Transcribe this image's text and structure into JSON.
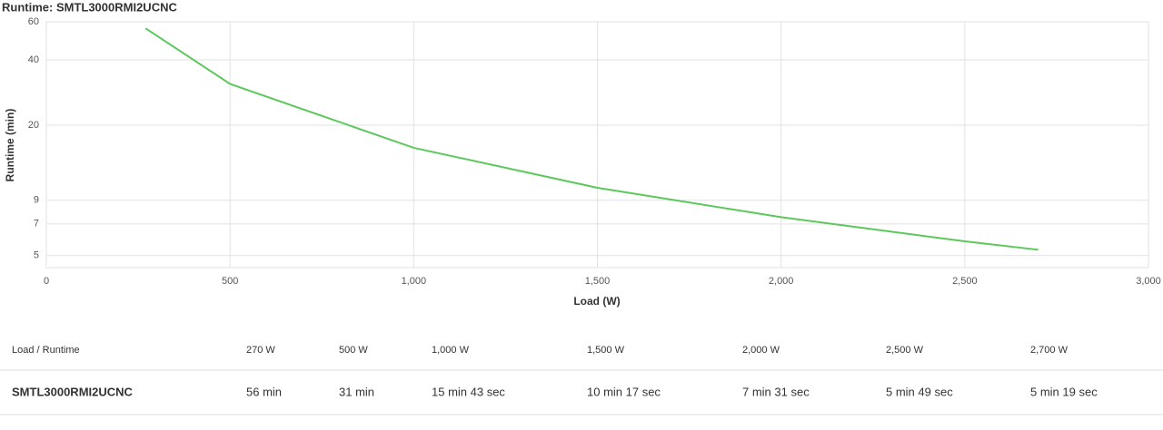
{
  "chart_data": {
    "type": "line",
    "title": "Runtime: SMTL3000RMI2UCNC",
    "x_label": "Load (W)",
    "y_label": "Runtime (min)",
    "x": [
      270,
      500,
      1000,
      1500,
      2000,
      2500,
      2700
    ],
    "series": [
      {
        "name": "SMTL3000RMI2UCNC",
        "color": "#5cc85c",
        "values": [
          56,
          31,
          15.72,
          10.28,
          7.52,
          5.82,
          5.32
        ]
      }
    ],
    "xlim": [
      0,
      3000
    ],
    "xticks": [
      0,
      500,
      {
        "value": 1000,
        "label": "1,000"
      },
      {
        "value": 1500,
        "label": "1,500"
      },
      {
        "value": 2000,
        "label": "2,000"
      },
      {
        "value": 2500,
        "label": "2,500"
      },
      {
        "value": 3000,
        "label": "3,000"
      }
    ],
    "ylim": [
      4.4,
      60
    ],
    "yticks": [
      5,
      7,
      9,
      20,
      40,
      60
    ],
    "ylog": true,
    "grid": true
  },
  "table": {
    "header": [
      "Load / Runtime",
      "270 W",
      "500 W",
      "1,000 W",
      "1,500 W",
      "2,000 W",
      "2,500 W",
      "2,700 W"
    ],
    "rows": [
      [
        "SMTL3000RMI2UCNC",
        "56 min",
        "31 min",
        "15 min 43 sec",
        "10 min 17 sec",
        "7 min 31 sec",
        "5 min 49 sec",
        "5 min 19 sec"
      ]
    ]
  }
}
